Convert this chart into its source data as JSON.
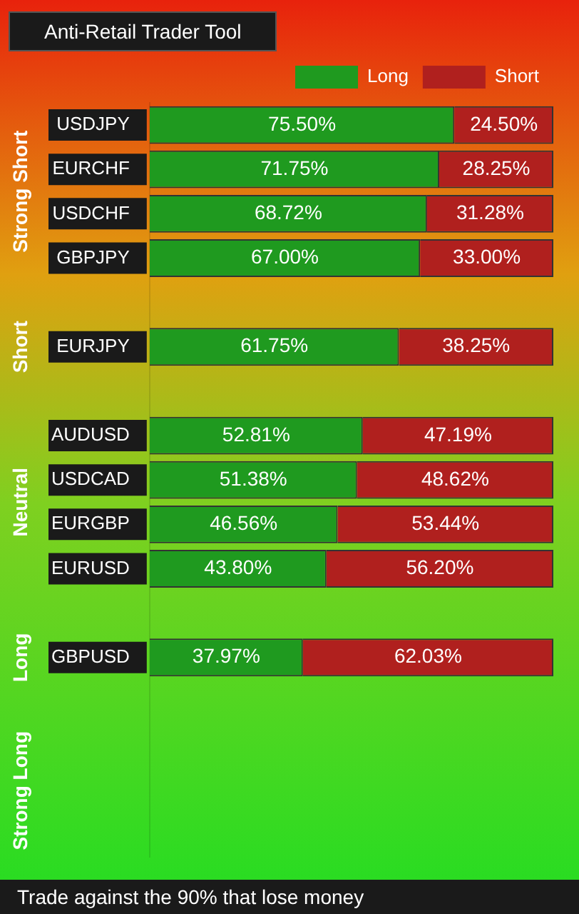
{
  "chart_data": {
    "type": "bar",
    "orientation": "horizontal",
    "stacked": true,
    "title": "Anti-Retail Trader Tool",
    "categories": [
      "USDJPY",
      "EURCHF",
      "USDCHF",
      "GBPJPY",
      null,
      "EURJPY",
      null,
      "AUDUSD",
      "USDCAD",
      "EURGBP",
      "EURUSD",
      null,
      "GBPUSD",
      null,
      null,
      null,
      null
    ],
    "series": [
      {
        "name": "Long",
        "color": "#1f9a1f",
        "values": [
          75.5,
          71.75,
          68.72,
          67,
          null,
          61.75,
          null,
          52.81,
          51.38,
          46.56,
          43.8,
          null,
          37.97,
          null,
          null,
          null,
          null
        ],
        "value_labels": [
          "75.50%",
          "71.75%",
          "68.72%",
          "67.00%",
          null,
          "61.75%",
          null,
          "52.81%",
          "51.38%",
          "46.56%",
          "43.80%",
          null,
          "37.97%",
          null,
          null,
          null,
          null
        ]
      },
      {
        "name": "Short",
        "color": "#b0201e",
        "values": [
          24.5,
          28.25,
          31.28,
          33,
          null,
          38.25,
          null,
          47.19,
          48.62,
          53.44,
          56.2,
          null,
          62.03,
          null,
          null,
          null,
          null
        ],
        "value_labels": [
          "24.50%",
          "28.25%",
          "31.28%",
          "33.00%",
          null,
          "38.25%",
          null,
          "47.19%",
          "48.62%",
          "53.44%",
          "56.20%",
          null,
          "62.03%",
          null,
          null,
          null,
          null
        ]
      }
    ],
    "xlim": [
      0,
      100
    ],
    "tick_labels": "y",
    "grid": false,
    "legend": "top right",
    "annotations": [
      "Strong Short",
      "Short",
      "Neutral",
      "Long",
      "Strong Long",
      "Trade against the 90% that lose money"
    ]
  }
}
